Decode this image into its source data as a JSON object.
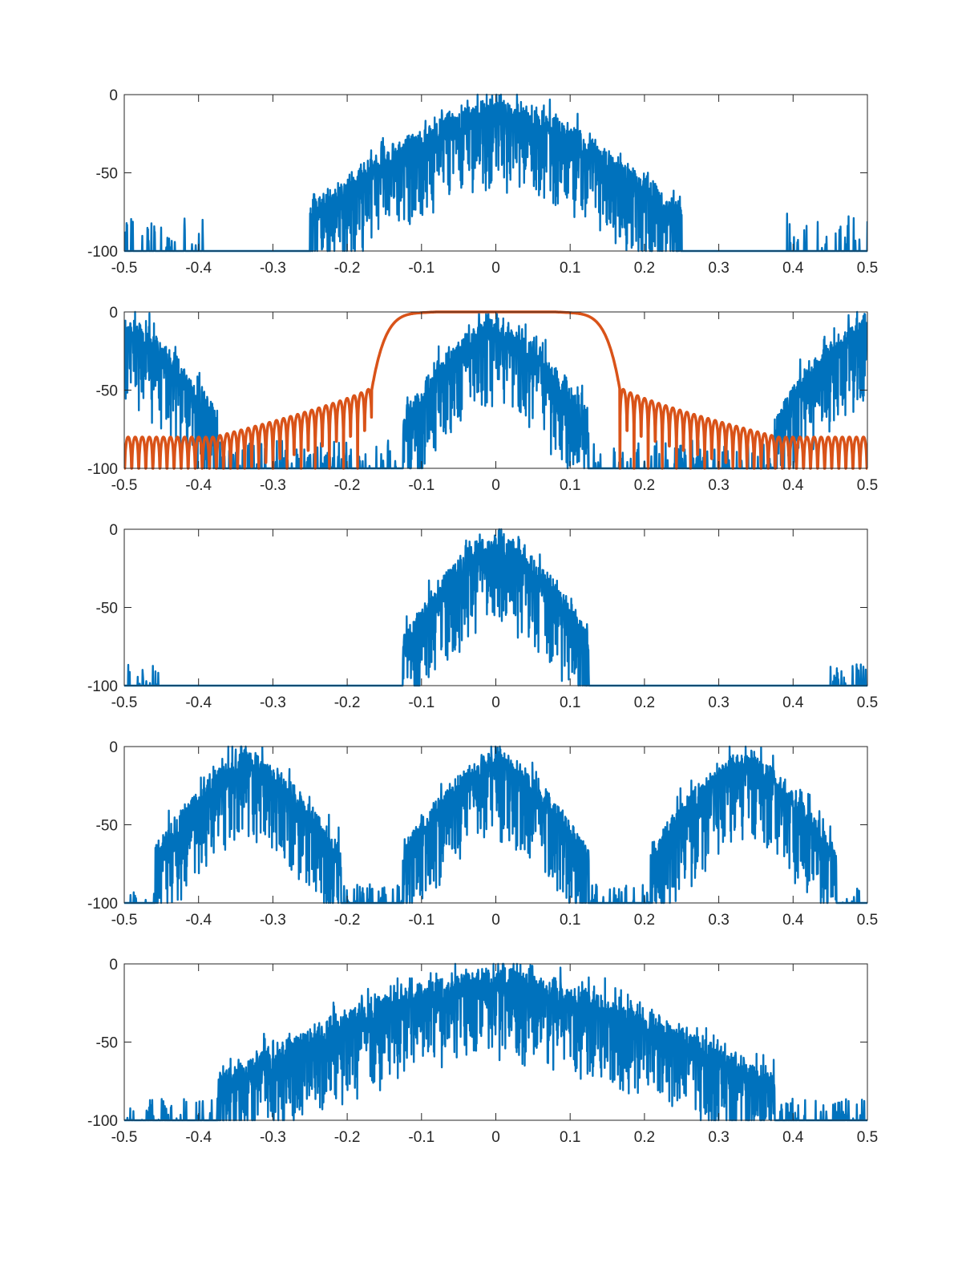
{
  "chart_data": [
    {
      "type": "line",
      "xlim": [
        -0.5,
        0.5
      ],
      "ylim": [
        -100,
        0
      ],
      "xticks": [
        "-0.5",
        "-0.4",
        "-0.3",
        "-0.2",
        "-0.1",
        "0",
        "0.1",
        "0.2",
        "0.3",
        "0.4",
        "0.5"
      ],
      "yticks": [
        "0",
        "-50",
        "-100"
      ],
      "grid": false,
      "series": [
        {
          "color": "#0072BD",
          "bands": [
            {
              "center": 0,
              "halfwidth": 0.25,
              "peak_db": 0,
              "edge_db": -68
            }
          ],
          "spurs": [
            {
              "from": -0.5,
              "to": -0.39,
              "max_db": -76
            },
            {
              "from": 0.39,
              "to": 0.5,
              "max_db": -76
            }
          ]
        }
      ]
    },
    {
      "type": "line",
      "xlim": [
        -0.5,
        0.5
      ],
      "ylim": [
        -100,
        0
      ],
      "xticks": [
        "-0.5",
        "-0.4",
        "-0.3",
        "-0.2",
        "-0.1",
        "0",
        "0.1",
        "0.2",
        "0.3",
        "0.4",
        "0.5"
      ],
      "yticks": [
        "0",
        "-50",
        "-100"
      ],
      "grid": false,
      "series": [
        {
          "color": "#0072BD",
          "bands": [
            {
              "center": 0,
              "halfwidth": 0.125,
              "peak_db": 0,
              "edge_db": -62
            },
            {
              "center": -0.5,
              "halfwidth": 0.125,
              "peak_db": 0,
              "edge_db": -62
            },
            {
              "center": 0.5,
              "halfwidth": 0.125,
              "peak_db": 0,
              "edge_db": -62
            }
          ],
          "spurs": [
            {
              "from": -0.375,
              "to": -0.13,
              "max_db": -82
            },
            {
              "from": 0.13,
              "to": 0.375,
              "max_db": -82
            }
          ]
        },
        {
          "color": "#D95319",
          "filter": {
            "passband_edge": 0.08,
            "stopband_edge": 0.167,
            "first_sidelobe_db": -48,
            "far_sidelobe_db": -80,
            "lobe_width": 0.0095
          }
        }
      ]
    },
    {
      "type": "line",
      "xlim": [
        -0.5,
        0.5
      ],
      "ylim": [
        -100,
        0
      ],
      "xticks": [
        "-0.5",
        "-0.4",
        "-0.3",
        "-0.2",
        "-0.1",
        "0",
        "0.1",
        "0.2",
        "0.3",
        "0.4",
        "0.5"
      ],
      "yticks": [
        "0",
        "-50",
        "-100"
      ],
      "grid": false,
      "series": [
        {
          "color": "#0072BD",
          "bands": [
            {
              "center": 0,
              "halfwidth": 0.125,
              "peak_db": 0,
              "edge_db": -62
            }
          ],
          "spurs": [
            {
              "from": -0.5,
              "to": -0.45,
              "max_db": -86
            },
            {
              "from": 0.45,
              "to": 0.5,
              "max_db": -86
            }
          ]
        }
      ]
    },
    {
      "type": "line",
      "xlim": [
        -0.5,
        0.5
      ],
      "ylim": [
        -100,
        0
      ],
      "xticks": [
        "-0.5",
        "-0.4",
        "-0.3",
        "-0.2",
        "-0.1",
        "0",
        "0.1",
        "0.2",
        "0.3",
        "0.4",
        "0.5"
      ],
      "yticks": [
        "0",
        "-50",
        "-100"
      ],
      "grid": false,
      "series": [
        {
          "color": "#0072BD",
          "bands": [
            {
              "center": -0.3333,
              "halfwidth": 0.125,
              "peak_db": 0,
              "edge_db": -62
            },
            {
              "center": 0,
              "halfwidth": 0.125,
              "peak_db": 0,
              "edge_db": -62
            },
            {
              "center": 0.3333,
              "halfwidth": 0.125,
              "peak_db": 0,
              "edge_db": -62
            }
          ],
          "spurs": [
            {
              "from": -0.5,
              "to": -0.46,
              "max_db": -90
            },
            {
              "from": -0.21,
              "to": -0.125,
              "max_db": -88
            },
            {
              "from": 0.125,
              "to": 0.21,
              "max_db": -88
            },
            {
              "from": 0.46,
              "to": 0.5,
              "max_db": -90
            }
          ]
        }
      ]
    },
    {
      "type": "line",
      "xlim": [
        -0.5,
        0.5
      ],
      "ylim": [
        -100,
        0
      ],
      "xticks": [
        "-0.5",
        "-0.4",
        "-0.3",
        "-0.2",
        "-0.1",
        "0",
        "0.1",
        "0.2",
        "0.3",
        "0.4",
        "0.5"
      ],
      "yticks": [
        "0",
        "-50",
        "-100"
      ],
      "grid": false,
      "series": [
        {
          "color": "#0072BD",
          "bands": [
            {
              "center": 0,
              "halfwidth": 0.375,
              "peak_db": 0,
              "edge_db": -68
            }
          ],
          "spurs": [
            {
              "from": -0.5,
              "to": -0.38,
              "max_db": -86
            },
            {
              "from": 0.38,
              "to": 0.5,
              "max_db": -86
            }
          ]
        }
      ]
    }
  ]
}
